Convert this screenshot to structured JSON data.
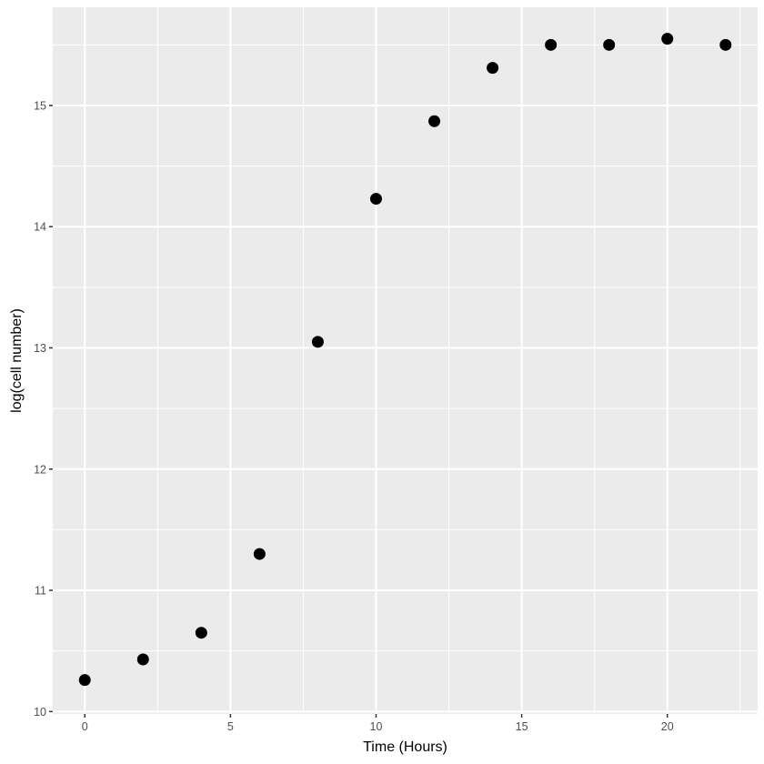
{
  "chart_data": {
    "type": "scatter",
    "xlabel": "Time (Hours)",
    "ylabel": "log(cell number)",
    "xlim": [
      -1.1,
      23.1
    ],
    "ylim": [
      9.98,
      15.81
    ],
    "x_ticks": [
      0,
      5,
      10,
      15,
      20
    ],
    "x_tick_labels": [
      "0",
      "5",
      "10",
      "15",
      "20"
    ],
    "y_ticks": [
      10,
      11,
      12,
      13,
      14,
      15
    ],
    "y_tick_labels": [
      "10",
      "11",
      "12",
      "13",
      "14",
      "15"
    ],
    "x_minor_ticks": [
      2.5,
      7.5,
      12.5,
      17.5,
      22.5
    ],
    "y_minor_ticks": [
      10.5,
      11.5,
      12.5,
      13.5,
      14.5,
      15.5
    ],
    "grid": true,
    "colors": {
      "panel_background": "#ebebeb",
      "grid": "#ffffff",
      "point": "#000000",
      "tick_label": "#4d4d4d"
    },
    "points": [
      {
        "x": 0,
        "y": 10.26
      },
      {
        "x": 2,
        "y": 10.43
      },
      {
        "x": 4,
        "y": 10.65
      },
      {
        "x": 6,
        "y": 11.3
      },
      {
        "x": 8,
        "y": 13.05
      },
      {
        "x": 10,
        "y": 14.23
      },
      {
        "x": 12,
        "y": 14.87
      },
      {
        "x": 14,
        "y": 15.31
      },
      {
        "x": 16,
        "y": 15.5
      },
      {
        "x": 18,
        "y": 15.5
      },
      {
        "x": 20,
        "y": 15.55
      },
      {
        "x": 22,
        "y": 15.5
      }
    ]
  }
}
